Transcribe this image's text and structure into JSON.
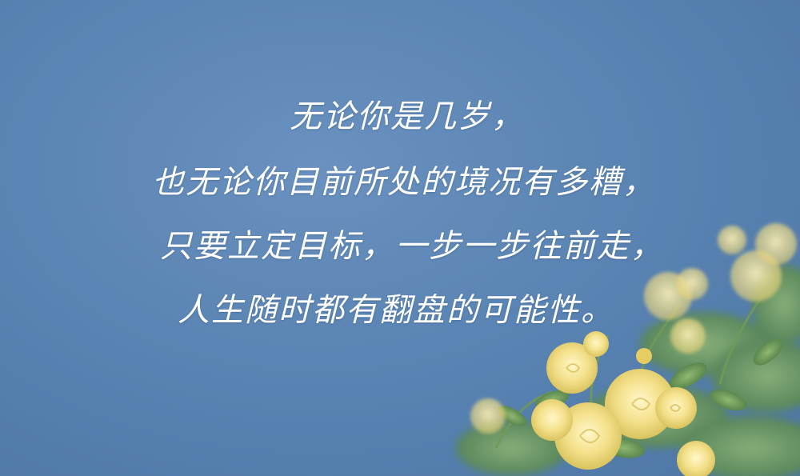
{
  "quote": {
    "lines": [
      "无论你是几岁，",
      "也无论你目前所处的境况有多糟，",
      "只要立定目标，一步一步往前走，",
      "人生随时都有翻盘的可能性。"
    ]
  },
  "colors": {
    "sky": "#5a84b3",
    "text": "#ffffff",
    "petal": "#f3e08a",
    "leaf": "#6e9a55"
  }
}
